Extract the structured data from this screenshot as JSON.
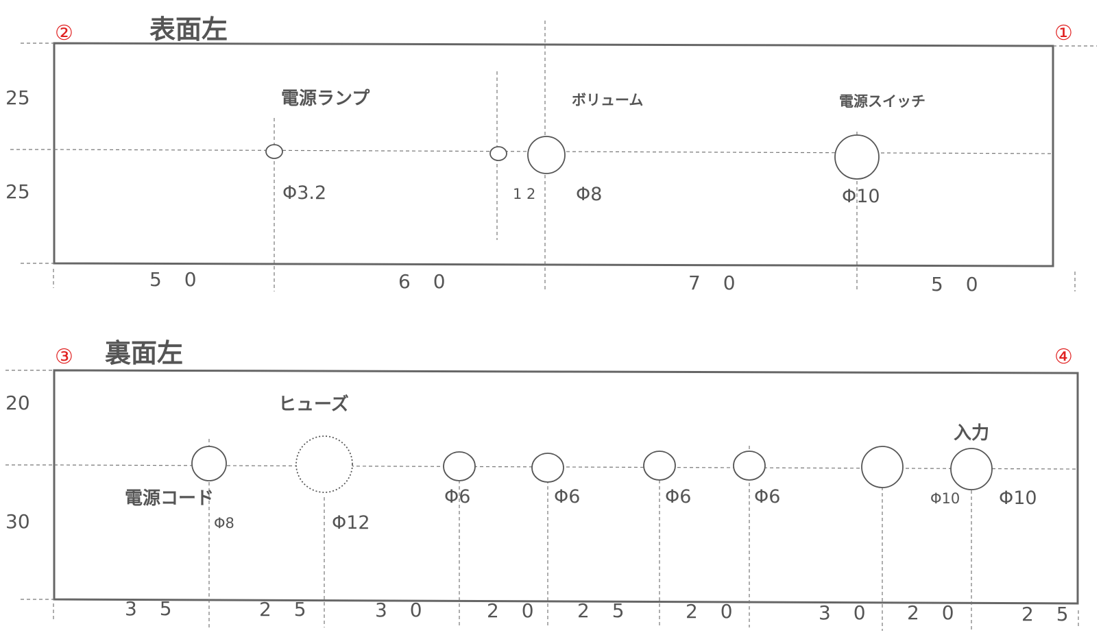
{
  "front": {
    "title": "表面左",
    "corner_left": "②",
    "corner_right": "①",
    "side_dims": [
      "25",
      "25"
    ],
    "bottom_dims": [
      "5 0",
      "6 0",
      "7 0",
      "5 0"
    ],
    "labels": {
      "power_lamp": "電源ランプ",
      "volume": "ボリューム",
      "power_switch": "電源スイッチ"
    },
    "holes": {
      "lamp": "Φ3.2",
      "small_offset": "1 2",
      "volume": "Φ8",
      "switch": "Φ10"
    }
  },
  "back": {
    "title": "裏面左",
    "corner_left": "③",
    "corner_right": "④",
    "side_dims": [
      "20",
      "30"
    ],
    "bottom_dims": [
      "3 5",
      "2 5",
      "3 0",
      "2 0",
      "2 5",
      "2 0",
      "3 0",
      "2 0",
      "2 5"
    ],
    "labels": {
      "fuse": "ヒューズ",
      "power_cord": "電源コード",
      "input": "入力"
    },
    "holes": {
      "cord": "Φ8",
      "fuse": "Φ12",
      "j1": "Φ6",
      "j2": "Φ6",
      "j3": "Φ6",
      "j4": "Φ6",
      "in1": "Φ10",
      "in2": "Φ10"
    }
  }
}
